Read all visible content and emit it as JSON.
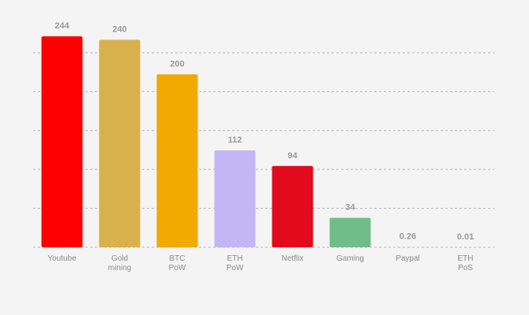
{
  "chart_data": {
    "type": "bar",
    "categories": [
      "Youtube",
      "Gold\nmining",
      "BTC\nPoW",
      "ETH\nPoW",
      "Netflix",
      "Gaming",
      "Paypal",
      "ETH\nPoS"
    ],
    "values": [
      244,
      240,
      200,
      112,
      94,
      34,
      0.26,
      0.01
    ],
    "colors": [
      "#ff0000",
      "#d8b04c",
      "#f2a900",
      "#c2b7f4",
      "#e20a1c",
      "#70bd8a",
      "#c9c4ea",
      "#c2b7f4"
    ],
    "ylim": [
      0,
      250
    ],
    "yticks": [
      0,
      45,
      90,
      135,
      180,
      225
    ],
    "grid": true
  }
}
